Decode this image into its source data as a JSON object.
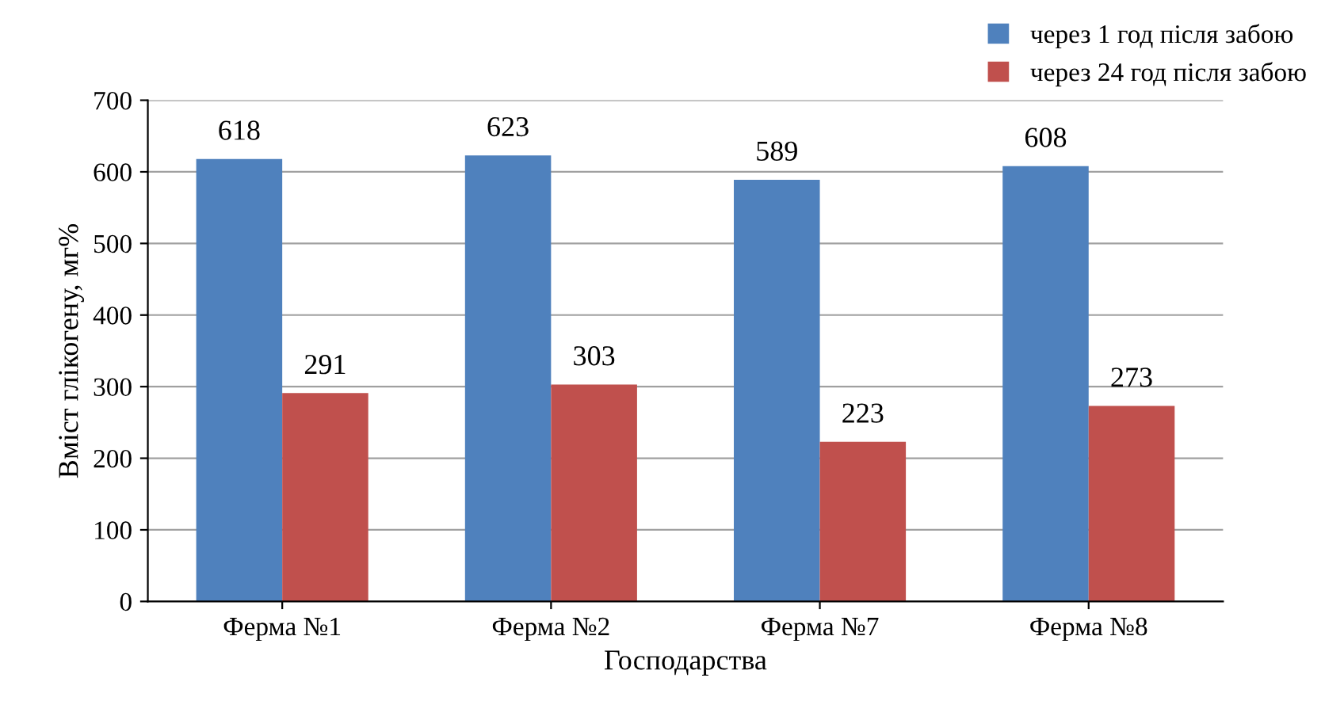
{
  "chart_data": {
    "type": "bar",
    "xlabel": "Господарства",
    "ylabel": "Вміст глікогену, мг%",
    "categories": [
      "Ферма №1",
      "Ферма №2",
      "Ферма №7",
      "Ферма №8"
    ],
    "series": [
      {
        "name": "через 1 год після забою",
        "color": "#4f81bd",
        "values": [
          618,
          623,
          589,
          608
        ]
      },
      {
        "name": "через 24 год після забою",
        "color": "#c0504d",
        "values": [
          291,
          303,
          223,
          273
        ]
      }
    ],
    "ylim": [
      0,
      700
    ],
    "yticks": [
      0,
      100,
      200,
      300,
      400,
      500,
      600,
      700
    ],
    "grid": "y",
    "legend": "top right",
    "data_labels": true
  }
}
